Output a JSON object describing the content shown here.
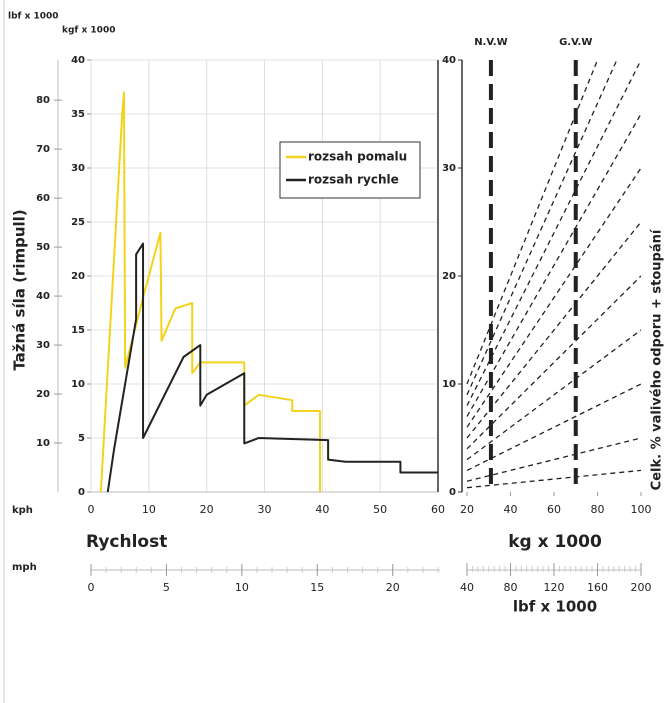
{
  "chart_data": [
    {
      "type": "line",
      "y_label": "Tažná síla (rimpull)",
      "y_unit": "kgf x 1000",
      "y2_unit": "lbf x 1000",
      "x_label": "Rychlost",
      "x_unit": "kph",
      "x2_unit": "mph",
      "xlim": [
        0,
        60
      ],
      "xticks": [
        0,
        10,
        20,
        30,
        40,
        50,
        60
      ],
      "x2lim": [
        0,
        23
      ],
      "x2ticks": [
        0,
        5,
        10,
        15,
        20
      ],
      "ylim": [
        0,
        40
      ],
      "yticks": [
        0,
        5,
        10,
        15,
        20,
        25,
        30,
        35,
        40
      ],
      "y2lim": [
        0,
        88.2
      ],
      "y2ticks": [
        10,
        20,
        30,
        40,
        50,
        60,
        70,
        80
      ],
      "grid": true,
      "legend": "upper right",
      "series": [
        {
          "name": "rozsah pomalu",
          "color": "#f2d31b",
          "x": [
            1.7,
            5.4,
            5.7,
            5.9,
            9,
            12,
            12.2,
            14.6,
            17.5,
            17.5,
            18.9,
            26.5,
            26.5,
            29,
            34.8,
            34.8,
            39.6,
            39.6
          ],
          "values": [
            0,
            35,
            37,
            11.5,
            18,
            24,
            14,
            17,
            17.5,
            11,
            12,
            12,
            8,
            9,
            8.5,
            7.5,
            7.5,
            0
          ]
        },
        {
          "name": "rozsah rychle",
          "color": "#222222",
          "x": [
            2.9,
            4,
            7.8,
            7.8,
            9,
            9,
            16,
            18.9,
            18.9,
            20,
            26.5,
            26.5,
            29,
            41,
            41,
            44,
            53.5,
            53.5,
            60
          ],
          "values": [
            0,
            4,
            16,
            22,
            23,
            5,
            12.5,
            13.6,
            8,
            9,
            11,
            4.5,
            5,
            4.8,
            3,
            2.8,
            2.8,
            1.8,
            1.8
          ]
        }
      ]
    },
    {
      "type": "line",
      "x_label": "kg x 1000",
      "x2_label": "lbf x 1000",
      "y_label": "Celk. % valivého odporu + stoupání",
      "xlim": [
        20,
        100
      ],
      "xticks": [
        20,
        40,
        60,
        80,
        100
      ],
      "x2lim": [
        40,
        200
      ],
      "x2ticks": [
        40,
        80,
        120,
        160,
        200
      ],
      "ylim": [
        0,
        40
      ],
      "yticks": [
        0,
        10,
        20,
        30,
        40
      ],
      "markers": [
        {
          "label": "N.V.W",
          "x": 31
        },
        {
          "label": "G.V.W",
          "x": 70
        }
      ],
      "x": [
        20,
        100
      ],
      "series": [
        {
          "color": "#222222",
          "values": [
            0.4,
            2
          ]
        },
        {
          "color": "#222222",
          "values": [
            1,
            5
          ]
        },
        {
          "color": "#222222",
          "values": [
            2,
            10
          ]
        },
        {
          "color": "#222222",
          "values": [
            3,
            15
          ]
        },
        {
          "color": "#222222",
          "values": [
            4,
            20
          ]
        },
        {
          "color": "#222222",
          "values": [
            5,
            25
          ]
        },
        {
          "color": "#222222",
          "values": [
            6,
            30
          ]
        },
        {
          "color": "#222222",
          "values": [
            7,
            35
          ]
        },
        {
          "color": "#222222",
          "values": [
            8,
            40
          ]
        },
        {
          "color": "#222222",
          "values": [
            9,
            45
          ]
        },
        {
          "color": "#222222",
          "values": [
            10,
            50
          ]
        }
      ]
    }
  ]
}
